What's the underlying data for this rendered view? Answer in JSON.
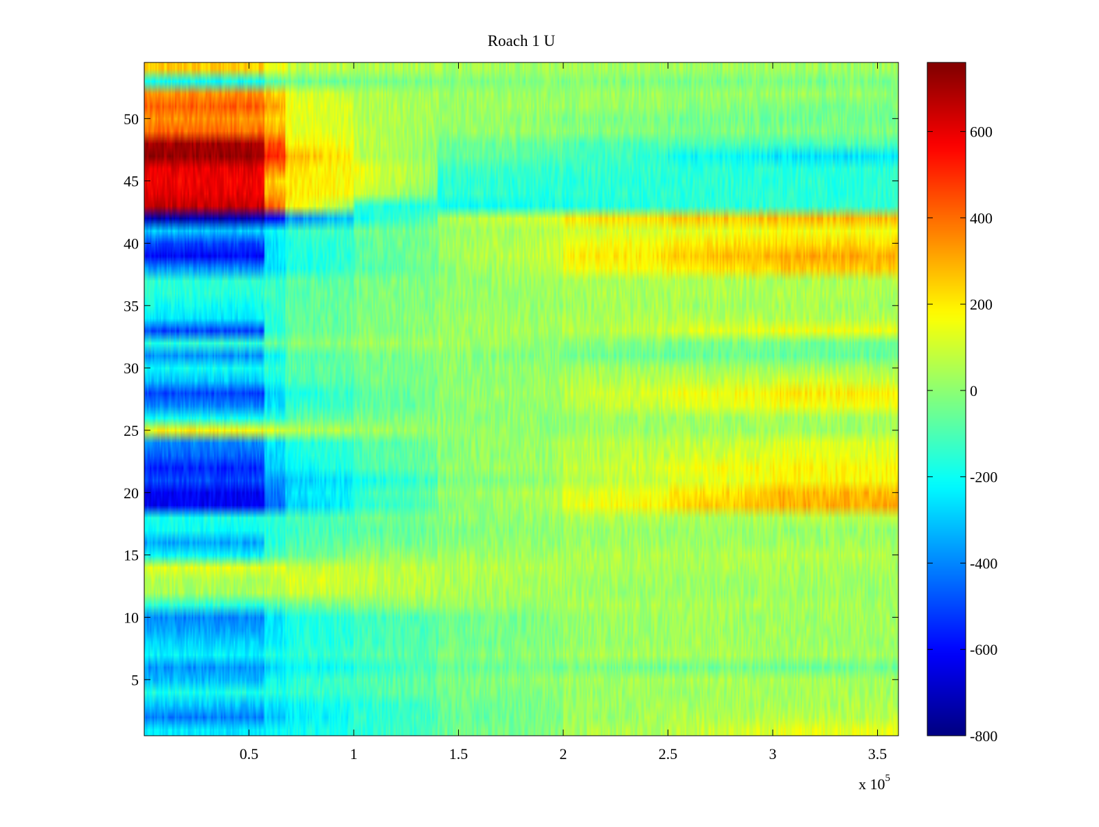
{
  "chart_data": {
    "type": "heatmap",
    "title": "Roach 1 U",
    "xlabel": "",
    "ylabel": "",
    "x_multiplier_label": "x 10",
    "x_multiplier_exponent": "5",
    "xlim": [
      0,
      3.6
    ],
    "ylim": [
      0.5,
      54.5
    ],
    "x_ticks": [
      0.5,
      1,
      1.5,
      2,
      2.5,
      3,
      3.5
    ],
    "x_tick_labels": [
      "0.5",
      "1",
      "1.5",
      "2",
      "2.5",
      "3",
      "3.5"
    ],
    "y_ticks": [
      5,
      10,
      15,
      20,
      25,
      30,
      35,
      40,
      45,
      50
    ],
    "y_tick_labels": [
      "5",
      "10",
      "15",
      "20",
      "25",
      "30",
      "35",
      "40",
      "45",
      "50"
    ],
    "colorbar": {
      "colormap": "jet",
      "range": [
        -800,
        760
      ],
      "ticks": [
        600,
        400,
        200,
        0,
        -200,
        -400,
        -600,
        -800
      ],
      "tick_labels": [
        "600",
        "400",
        "200",
        "0",
        "-200",
        "-400",
        "-600",
        "-800"
      ]
    },
    "x_segment_edges": [
      0,
      0.57,
      0.67,
      1.0,
      1.4,
      2.0,
      2.5,
      3.0,
      3.6
    ],
    "row_profiles": [
      {
        "rows": [
          1,
          1
        ],
        "values": [
          -250,
          -220,
          -200,
          -150,
          -60,
          40,
          80,
          140
        ]
      },
      {
        "rows": [
          2,
          2
        ],
        "values": [
          -420,
          -300,
          -250,
          -150,
          -60,
          20,
          50,
          70
        ]
      },
      {
        "rows": [
          3,
          3
        ],
        "values": [
          -300,
          -250,
          -220,
          -150,
          -60,
          20,
          40,
          50
        ]
      },
      {
        "rows": [
          4,
          4
        ],
        "values": [
          -180,
          -160,
          -140,
          -100,
          -40,
          20,
          30,
          40
        ]
      },
      {
        "rows": [
          5,
          5
        ],
        "values": [
          -320,
          -200,
          -150,
          -100,
          -30,
          30,
          40,
          40
        ]
      },
      {
        "rows": [
          6,
          6
        ],
        "values": [
          -380,
          -280,
          -220,
          -150,
          -60,
          -30,
          -40,
          -50
        ]
      },
      {
        "rows": [
          7,
          7
        ],
        "values": [
          -230,
          -180,
          -150,
          -100,
          -30,
          40,
          40,
          40
        ]
      },
      {
        "rows": [
          8,
          8
        ],
        "values": [
          -280,
          -220,
          -180,
          -120,
          -50,
          20,
          30,
          30
        ]
      },
      {
        "rows": [
          9,
          9
        ],
        "values": [
          -350,
          -250,
          -180,
          -120,
          -50,
          20,
          30,
          30
        ]
      },
      {
        "rows": [
          10,
          10
        ],
        "values": [
          -400,
          -250,
          -180,
          -120,
          -50,
          20,
          30,
          30
        ]
      },
      {
        "rows": [
          11,
          11
        ],
        "values": [
          -150,
          -100,
          -50,
          0,
          20,
          40,
          40,
          40
        ]
      },
      {
        "rows": [
          12,
          12
        ],
        "values": [
          40,
          60,
          100,
          70,
          40,
          30,
          20,
          20
        ]
      },
      {
        "rows": [
          13,
          13
        ],
        "values": [
          60,
          80,
          130,
          90,
          50,
          40,
          30,
          30
        ]
      },
      {
        "rows": [
          14,
          14
        ],
        "values": [
          130,
          120,
          100,
          80,
          60,
          50,
          40,
          40
        ]
      },
      {
        "rows": [
          15,
          15
        ],
        "values": [
          -220,
          -120,
          -60,
          0,
          30,
          50,
          50,
          60
        ]
      },
      {
        "rows": [
          16,
          16
        ],
        "values": [
          -350,
          -150,
          -100,
          -50,
          0,
          30,
          30,
          30
        ]
      },
      {
        "rows": [
          17,
          17
        ],
        "values": [
          -200,
          -160,
          -120,
          -80,
          -20,
          20,
          20,
          20
        ]
      },
      {
        "rows": [
          18,
          18
        ],
        "values": [
          -180,
          -150,
          -120,
          -60,
          0,
          50,
          50,
          60
        ]
      },
      {
        "rows": [
          19,
          19
        ],
        "values": [
          -620,
          -450,
          -300,
          -150,
          -20,
          150,
          230,
          300
        ]
      },
      {
        "rows": [
          20,
          20
        ],
        "values": [
          -620,
          -420,
          -280,
          -130,
          0,
          120,
          200,
          280
        ]
      },
      {
        "rows": [
          21,
          21
        ],
        "values": [
          -500,
          -380,
          -300,
          -200,
          -40,
          60,
          120,
          180
        ]
      },
      {
        "rows": [
          22,
          22
        ],
        "values": [
          -550,
          -300,
          -220,
          -100,
          0,
          80,
          150,
          180
        ]
      },
      {
        "rows": [
          23,
          23
        ],
        "values": [
          -450,
          -280,
          -200,
          -100,
          0,
          60,
          100,
          140
        ]
      },
      {
        "rows": [
          24,
          24
        ],
        "values": [
          -400,
          -250,
          -180,
          -100,
          0,
          60,
          80,
          120
        ]
      },
      {
        "rows": [
          25,
          25
        ],
        "values": [
          180,
          120,
          60,
          30,
          10,
          20,
          30,
          30
        ]
      },
      {
        "rows": [
          26,
          26
        ],
        "values": [
          -200,
          -150,
          -80,
          -30,
          0,
          20,
          30,
          30
        ]
      },
      {
        "rows": [
          27,
          27
        ],
        "values": [
          -400,
          -250,
          -150,
          -80,
          0,
          60,
          120,
          160
        ]
      },
      {
        "rows": [
          28,
          28
        ],
        "values": [
          -500,
          -280,
          -180,
          -80,
          0,
          80,
          150,
          200
        ]
      },
      {
        "rows": [
          29,
          29
        ],
        "values": [
          -300,
          -200,
          -100,
          -50,
          0,
          50,
          80,
          100
        ]
      },
      {
        "rows": [
          30,
          30
        ],
        "values": [
          -200,
          -150,
          -80,
          -40,
          0,
          30,
          40,
          40
        ]
      },
      {
        "rows": [
          31,
          31
        ],
        "values": [
          -380,
          -200,
          -100,
          -40,
          0,
          -40,
          -60,
          -60
        ]
      },
      {
        "rows": [
          32,
          32
        ],
        "values": [
          -150,
          -60,
          -20,
          20,
          40,
          0,
          -30,
          -40
        ]
      },
      {
        "rows": [
          33,
          33
        ],
        "values": [
          -500,
          -150,
          -80,
          -20,
          20,
          60,
          120,
          150
        ]
      },
      {
        "rows": [
          34,
          34
        ],
        "values": [
          -250,
          -150,
          -80,
          -20,
          20,
          40,
          60,
          60
        ]
      },
      {
        "rows": [
          35,
          35
        ],
        "values": [
          -200,
          -150,
          -80,
          -30,
          10,
          30,
          40,
          40
        ]
      },
      {
        "rows": [
          36,
          36
        ],
        "values": [
          -150,
          -120,
          -80,
          -30,
          10,
          40,
          50,
          50
        ]
      },
      {
        "rows": [
          37,
          37
        ],
        "values": [
          -150,
          -130,
          -80,
          -30,
          10,
          40,
          50,
          50
        ]
      },
      {
        "rows": [
          38,
          38
        ],
        "values": [
          -380,
          -250,
          -180,
          -100,
          0,
          150,
          200,
          260
        ]
      },
      {
        "rows": [
          39,
          39
        ],
        "values": [
          -600,
          -250,
          -180,
          -80,
          20,
          180,
          250,
          300
        ]
      },
      {
        "rows": [
          40,
          40
        ],
        "values": [
          -500,
          -250,
          -180,
          -80,
          20,
          150,
          200,
          230
        ]
      },
      {
        "rows": [
          41,
          41
        ],
        "values": [
          -300,
          -200,
          -150,
          -60,
          20,
          100,
          130,
          160
        ]
      },
      {
        "rows": [
          42,
          42
        ],
        "values": [
          -720,
          -600,
          -400,
          -200,
          50,
          200,
          250,
          280
        ]
      },
      {
        "rows": [
          43,
          43
        ],
        "values": [
          650,
          400,
          200,
          -150,
          -200,
          -180,
          -150,
          -150
        ]
      },
      {
        "rows": [
          44,
          44
        ],
        "values": [
          600,
          300,
          220,
          100,
          -150,
          -150,
          -150,
          -150
        ]
      },
      {
        "rows": [
          45,
          45
        ],
        "values": [
          580,
          250,
          200,
          150,
          -150,
          -150,
          -150,
          -150
        ]
      },
      {
        "rows": [
          46,
          46
        ],
        "values": [
          600,
          380,
          200,
          150,
          -120,
          -130,
          -150,
          -150
        ]
      },
      {
        "rows": [
          47,
          47
        ],
        "values": [
          720,
          500,
          300,
          80,
          -60,
          -100,
          -200,
          -250
        ]
      },
      {
        "rows": [
          48,
          48
        ],
        "values": [
          700,
          450,
          200,
          80,
          -40,
          -100,
          -100,
          -100
        ]
      },
      {
        "rows": [
          49,
          49
        ],
        "values": [
          400,
          300,
          150,
          60,
          20,
          0,
          -20,
          -20
        ]
      },
      {
        "rows": [
          50,
          50
        ],
        "values": [
          350,
          250,
          150,
          60,
          20,
          -20,
          -40,
          -40
        ]
      },
      {
        "rows": [
          51,
          51
        ],
        "values": [
          420,
          300,
          150,
          60,
          30,
          20,
          0,
          -20
        ]
      },
      {
        "rows": [
          52,
          52
        ],
        "values": [
          350,
          250,
          120,
          60,
          30,
          20,
          20,
          20
        ]
      },
      {
        "rows": [
          53,
          53
        ],
        "values": [
          -200,
          -80,
          -60,
          -40,
          -20,
          -20,
          -30,
          -30
        ]
      },
      {
        "rows": [
          54,
          54
        ],
        "values": [
          250,
          150,
          80,
          60,
          40,
          30,
          30,
          30
        ]
      }
    ]
  },
  "colors": {
    "axis": "#000000",
    "background": "#ffffff"
  }
}
